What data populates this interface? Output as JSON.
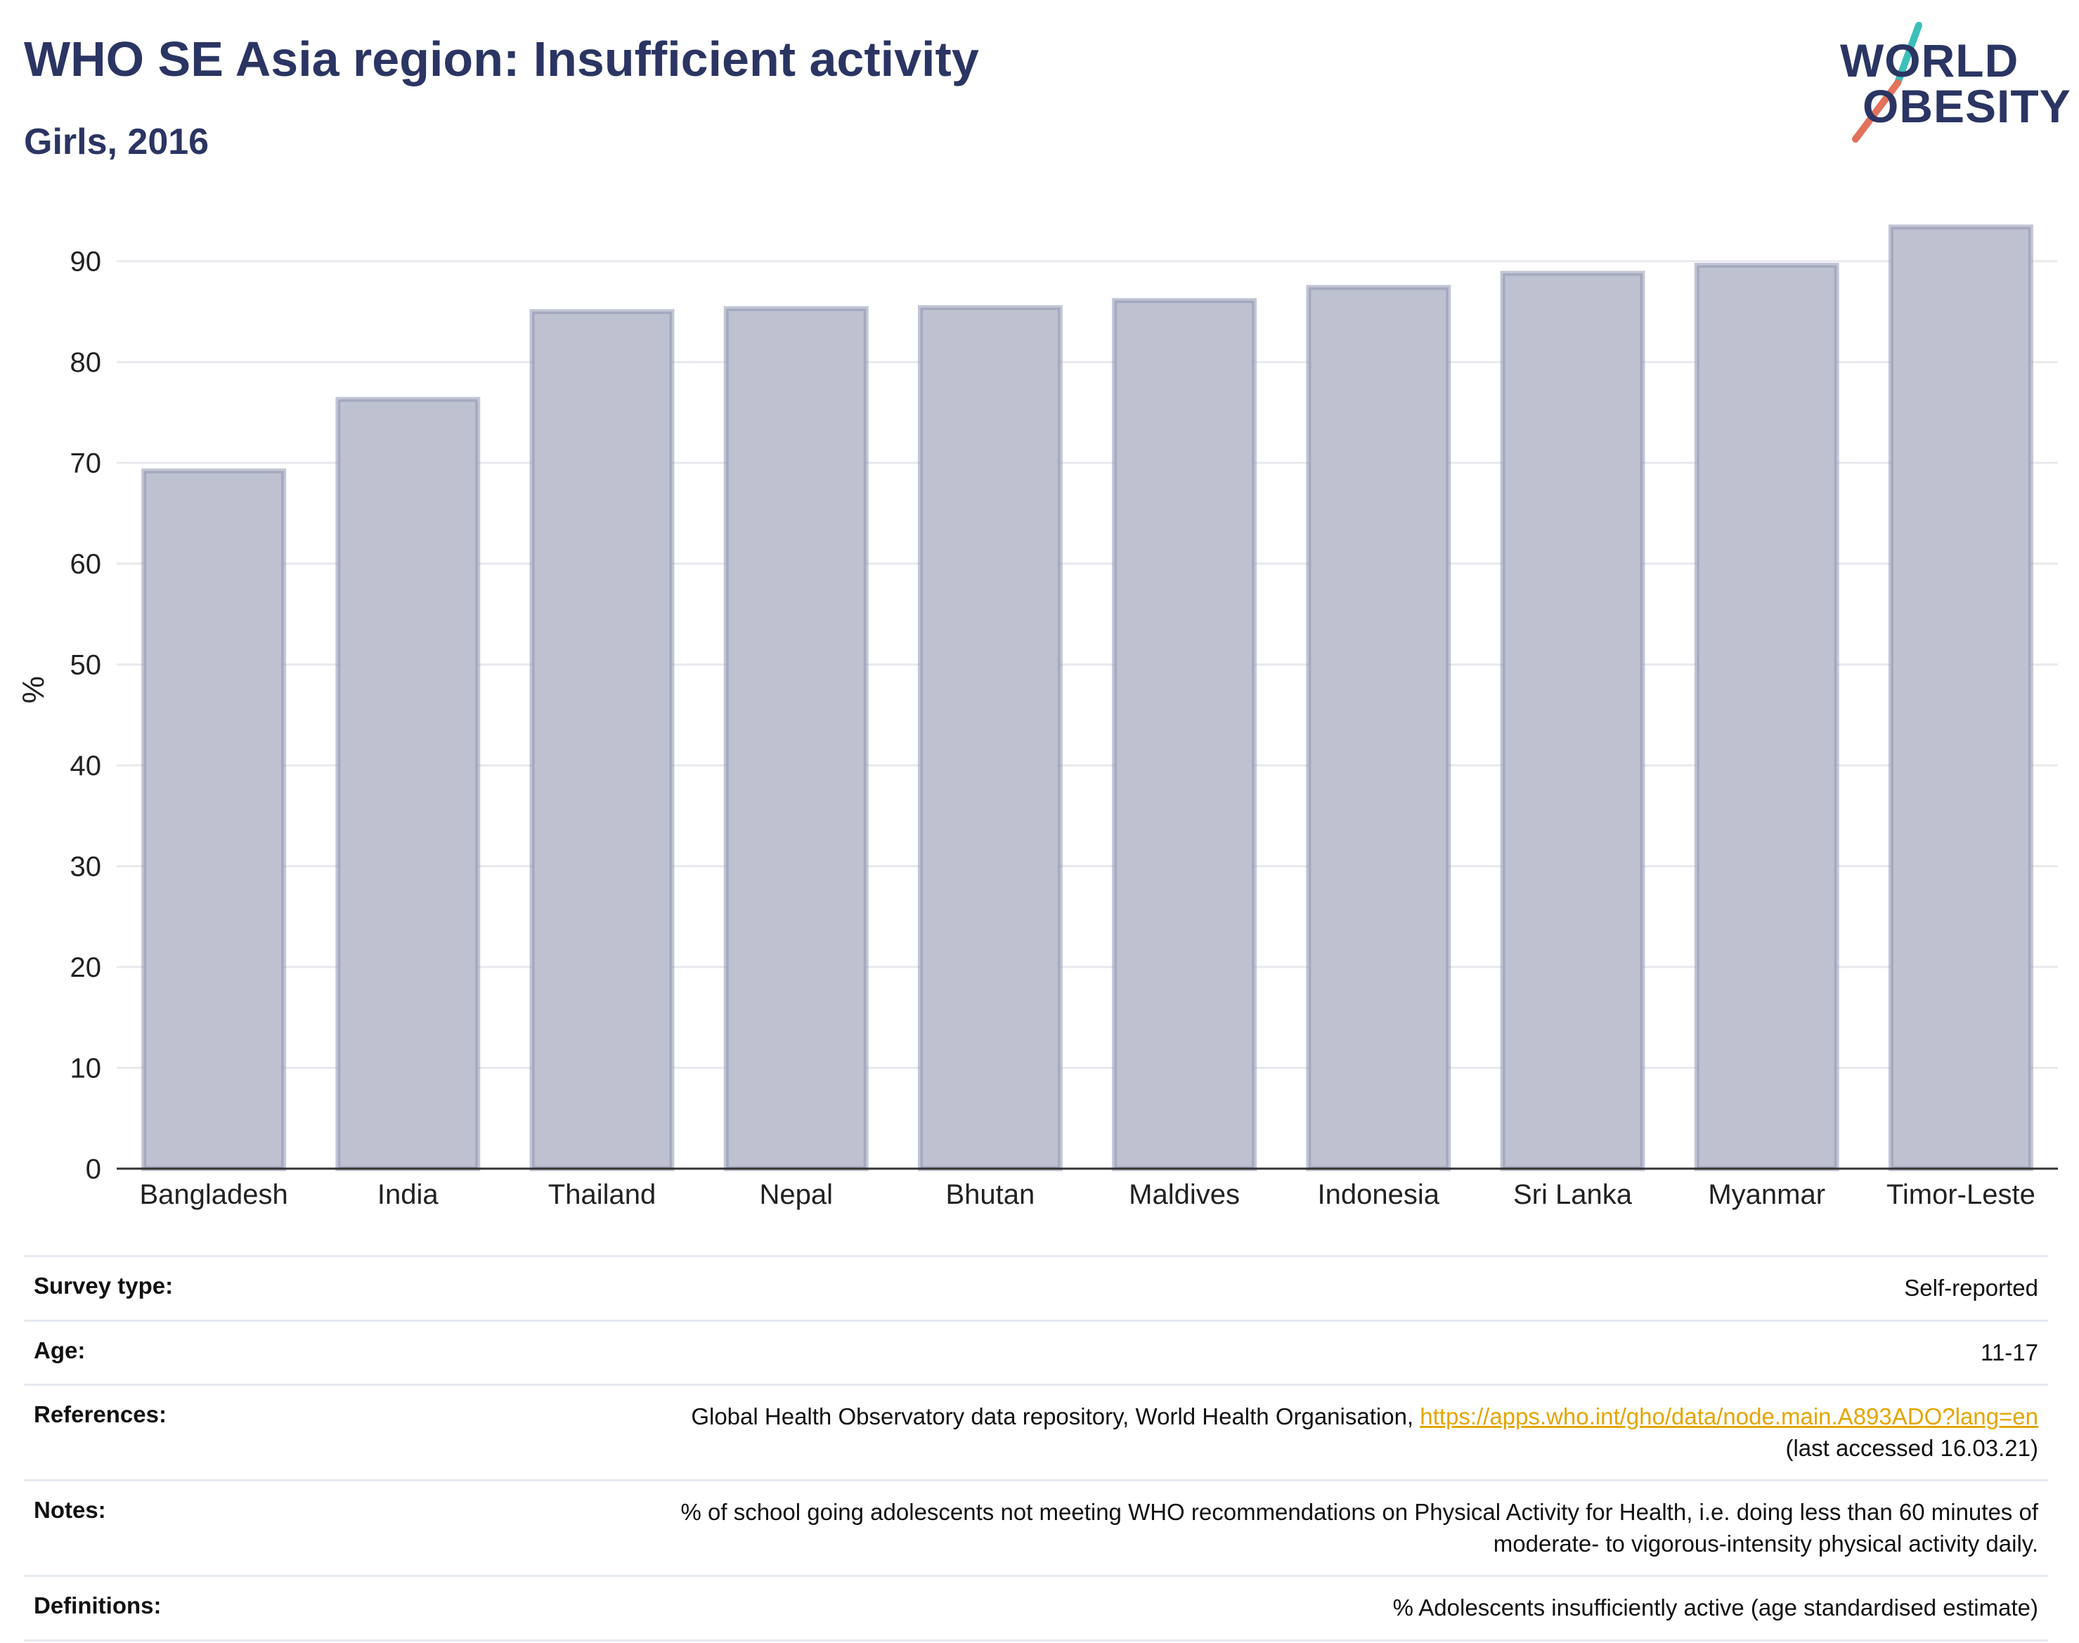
{
  "header": {
    "title": "WHO SE Asia region: Insufficient activity",
    "subtitle": "Girls, 2016"
  },
  "logo": {
    "line1": "WORLD",
    "line2": "OBESITY",
    "slash_colors": [
      "#3cbfb9",
      "#e2725b"
    ]
  },
  "colors": {
    "bar_fill": "#bec2d0",
    "bar_stroke": "#8f96b0",
    "grid": "#e8e9ee",
    "axis": "#333333",
    "title": "#2b3563",
    "link": "#e3a500"
  },
  "chart_data": {
    "type": "bar",
    "title": "WHO SE Asia region: Insufficient activity",
    "subtitle": "Girls, 2016",
    "xlabel": "",
    "ylabel": "%",
    "ylim": [
      0,
      95
    ],
    "yticks": [
      0,
      10,
      20,
      30,
      40,
      50,
      60,
      70,
      80,
      90
    ],
    "grid": true,
    "categories": [
      "Bangladesh",
      "India",
      "Thailand",
      "Nepal",
      "Bhutan",
      "Maldives",
      "Indonesia",
      "Sri Lanka",
      "Myanmar",
      "Timor-Leste"
    ],
    "values": [
      69.2,
      76.3,
      85.0,
      85.3,
      85.4,
      86.1,
      87.4,
      88.8,
      89.6,
      93.4
    ]
  },
  "info": {
    "survey_type": {
      "label": "Survey type:",
      "value": "Self-reported"
    },
    "age": {
      "label": "Age:",
      "value": "11-17"
    },
    "references": {
      "label": "References:",
      "text": "Global Health Observatory data repository, World Health Organisation, ",
      "link": "https://apps.who.int/gho/data/node.main.A893ADO?lang=en",
      "suffix": "(last accessed 16.03.21)"
    },
    "notes": {
      "label": "Notes:",
      "line1": "% of school going adolescents not meeting WHO recommendations on Physical Activity for Health, i.e. doing less than 60 minutes of",
      "line2": "moderate- to vigorous-intensity physical activity daily."
    },
    "definitions": {
      "label": "Definitions:",
      "value": "% Adolescents insufficiently active (age standardised estimate)"
    }
  }
}
